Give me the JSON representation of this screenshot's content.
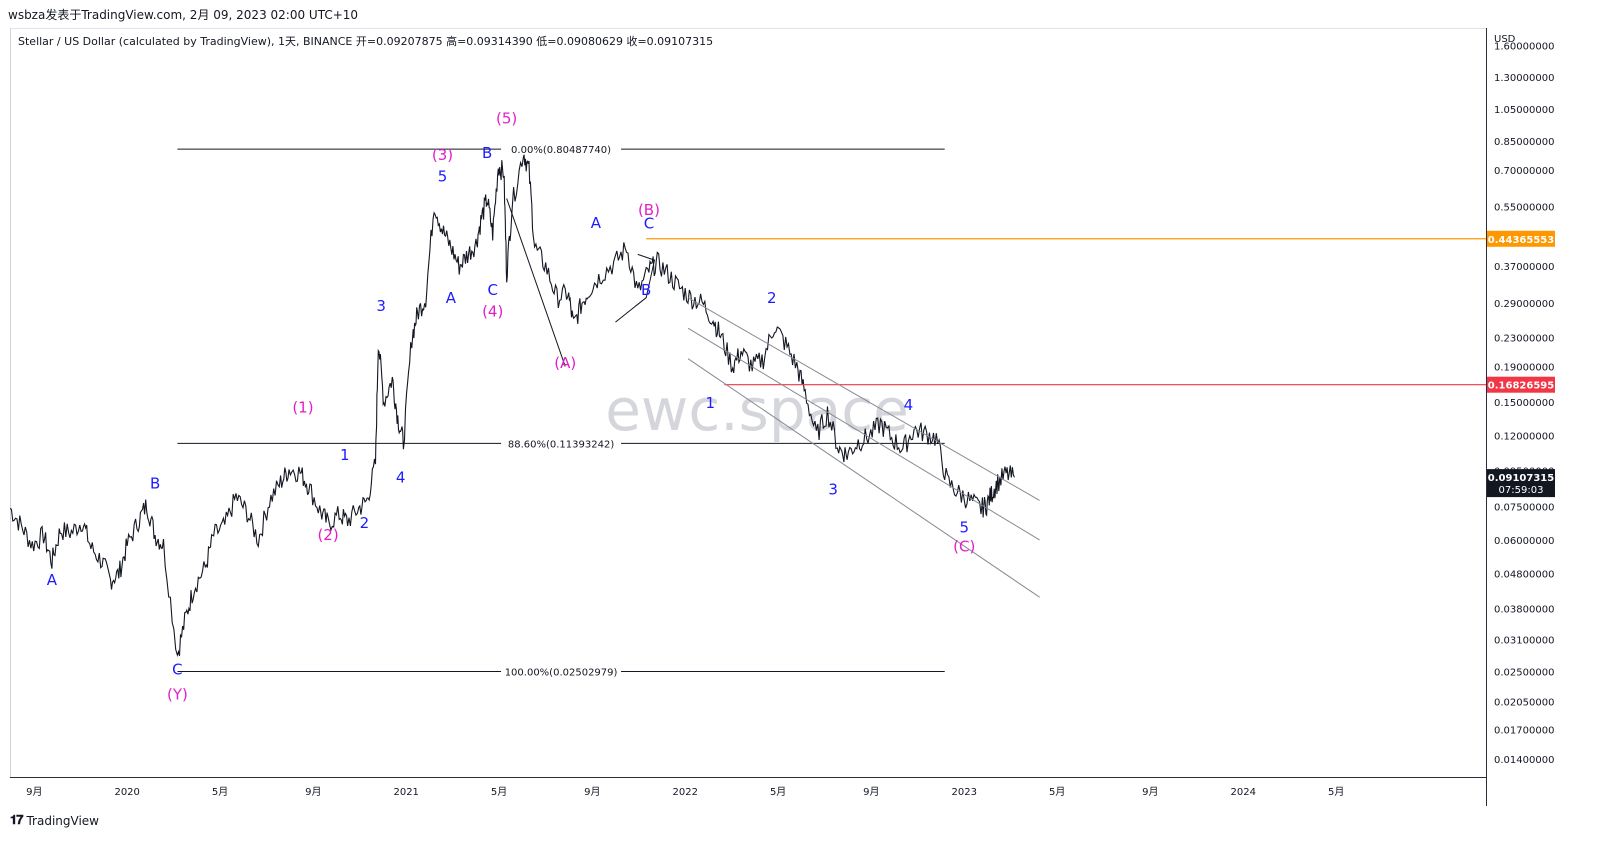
{
  "header": {
    "publish_line": "wsbza发表于TradingView.com,  2月 09, 2023 02:00 UTC+10",
    "symbol_line": "Stellar / US Dollar (calculated by TradingView), 1天, BINANCE  开=0.09207875  高=0.09314390  低=0.09080629  收=0.09107315"
  },
  "footer": {
    "brand": "TradingView",
    "logo_icon": "tradingview-logo-icon"
  },
  "watermark": "ewc.space",
  "chart_data": {
    "type": "line",
    "title": "",
    "yscale": "log",
    "ylim": [
      0.0125,
      1.8
    ],
    "price_axis_label": "USD",
    "price_ticks": [
      "1.60000000",
      "1.30000000",
      "1.05000000",
      "0.85000000",
      "0.70000000",
      "0.55000000",
      "0.37000000",
      "0.29000000",
      "0.23000000",
      "0.19000000",
      "0.15000000",
      "0.12000000",
      "0.09500000",
      "0.07500000",
      "0.06000000",
      "0.04800000",
      "0.03800000",
      "0.03100000",
      "0.02500000",
      "0.02050000",
      "0.01700000",
      "0.01400000"
    ],
    "price_tick_values": [
      1.6,
      1.3,
      1.05,
      0.85,
      0.7,
      0.55,
      0.37,
      0.29,
      0.23,
      0.19,
      0.15,
      0.12,
      0.095,
      0.075,
      0.06,
      0.048,
      0.038,
      0.031,
      0.025,
      0.0205,
      0.017,
      0.014
    ],
    "time_ticks": [
      {
        "label": "9月",
        "t": 2019.667
      },
      {
        "label": "2020",
        "t": 2020.0
      },
      {
        "label": "5月",
        "t": 2020.333
      },
      {
        "label": "9月",
        "t": 2020.667
      },
      {
        "label": "2021",
        "t": 2021.0
      },
      {
        "label": "5月",
        "t": 2021.333
      },
      {
        "label": "9月",
        "t": 2021.667
      },
      {
        "label": "2022",
        "t": 2022.0
      },
      {
        "label": "5月",
        "t": 2022.333
      },
      {
        "label": "9月",
        "t": 2022.667
      },
      {
        "label": "2023",
        "t": 2023.0
      },
      {
        "label": "5月",
        "t": 2023.333
      },
      {
        "label": "9月",
        "t": 2023.667
      },
      {
        "label": "2024",
        "t": 2024.0
      },
      {
        "label": "5月",
        "t": 2024.333
      }
    ],
    "xlim": [
      2019.58,
      2024.87
    ],
    "series": [
      {
        "color": "#131722",
        "points": [
          [
            2019.58,
            0.074
          ],
          [
            2019.62,
            0.066
          ],
          [
            2019.66,
            0.058
          ],
          [
            2019.7,
            0.062
          ],
          [
            2019.73,
            0.052
          ],
          [
            2019.76,
            0.064
          ],
          [
            2019.8,
            0.063
          ],
          [
            2019.84,
            0.068
          ],
          [
            2019.87,
            0.057
          ],
          [
            2019.91,
            0.052
          ],
          [
            2019.94,
            0.046
          ],
          [
            2019.97,
            0.048
          ],
          [
            2020.0,
            0.058
          ],
          [
            2020.04,
            0.068
          ],
          [
            2020.07,
            0.076
          ],
          [
            2020.1,
            0.062
          ],
          [
            2020.13,
            0.058
          ],
          [
            2020.18,
            0.028
          ],
          [
            2020.21,
            0.036
          ],
          [
            2020.24,
            0.044
          ],
          [
            2020.28,
            0.05
          ],
          [
            2020.31,
            0.062
          ],
          [
            2020.35,
            0.066
          ],
          [
            2020.39,
            0.08
          ],
          [
            2020.43,
            0.072
          ],
          [
            2020.47,
            0.06
          ],
          [
            2020.51,
            0.078
          ],
          [
            2020.55,
            0.088
          ],
          [
            2020.58,
            0.096
          ],
          [
            2020.62,
            0.094
          ],
          [
            2020.65,
            0.086
          ],
          [
            2020.69,
            0.073
          ],
          [
            2020.72,
            0.067
          ],
          [
            2020.76,
            0.071
          ],
          [
            2020.79,
            0.068
          ],
          [
            2020.83,
            0.074
          ],
          [
            2020.86,
            0.078
          ],
          [
            2020.89,
            0.1
          ],
          [
            2020.9,
            0.225
          ],
          [
            2020.92,
            0.15
          ],
          [
            2020.95,
            0.175
          ],
          [
            2020.97,
            0.135
          ],
          [
            2020.99,
            0.115
          ],
          [
            2021.02,
            0.23
          ],
          [
            2021.04,
            0.27
          ],
          [
            2021.07,
            0.3
          ],
          [
            2021.1,
            0.56
          ],
          [
            2021.13,
            0.47
          ],
          [
            2021.16,
            0.42
          ],
          [
            2021.19,
            0.37
          ],
          [
            2021.22,
            0.4
          ],
          [
            2021.25,
            0.43
          ],
          [
            2021.27,
            0.51
          ],
          [
            2021.29,
            0.58
          ],
          [
            2021.31,
            0.46
          ],
          [
            2021.33,
            0.72
          ],
          [
            2021.35,
            0.69
          ],
          [
            2021.36,
            0.35
          ],
          [
            2021.38,
            0.56
          ],
          [
            2021.42,
            0.79
          ],
          [
            2021.44,
            0.7
          ],
          [
            2021.46,
            0.42
          ],
          [
            2021.5,
            0.37
          ],
          [
            2021.54,
            0.3
          ],
          [
            2021.58,
            0.31
          ],
          [
            2021.6,
            0.25
          ],
          [
            2021.63,
            0.29
          ],
          [
            2021.66,
            0.32
          ],
          [
            2021.7,
            0.35
          ],
          [
            2021.75,
            0.38
          ],
          [
            2021.79,
            0.42
          ],
          [
            2021.83,
            0.31
          ],
          [
            2021.87,
            0.36
          ],
          [
            2021.9,
            0.38
          ],
          [
            2021.94,
            0.35
          ],
          [
            2021.98,
            0.32
          ],
          [
            2022.02,
            0.3
          ],
          [
            2022.06,
            0.29
          ],
          [
            2022.1,
            0.26
          ],
          [
            2022.13,
            0.23
          ],
          [
            2022.17,
            0.19
          ],
          [
            2022.2,
            0.21
          ],
          [
            2022.24,
            0.19
          ],
          [
            2022.28,
            0.2
          ],
          [
            2022.32,
            0.25
          ],
          [
            2022.36,
            0.22
          ],
          [
            2022.4,
            0.19
          ],
          [
            2022.43,
            0.16
          ],
          [
            2022.47,
            0.12
          ],
          [
            2022.51,
            0.14
          ],
          [
            2022.55,
            0.11
          ],
          [
            2022.58,
            0.106
          ],
          [
            2022.62,
            0.115
          ],
          [
            2022.66,
            0.12
          ],
          [
            2022.7,
            0.13
          ],
          [
            2022.74,
            0.118
          ],
          [
            2022.78,
            0.11
          ],
          [
            2022.82,
            0.125
          ],
          [
            2022.86,
            0.122
          ],
          [
            2022.9,
            0.118
          ],
          [
            2022.94,
            0.088
          ],
          [
            2022.98,
            0.082
          ],
          [
            2023.02,
            0.078
          ],
          [
            2023.06,
            0.074
          ],
          [
            2023.08,
            0.076
          ],
          [
            2023.1,
            0.082
          ],
          [
            2023.12,
            0.088
          ],
          [
            2023.15,
            0.093
          ],
          [
            2023.18,
            0.091
          ]
        ]
      }
    ],
    "horizontal_levels": [
      {
        "label": "0.00%(0.80487740)",
        "price": 0.8049,
        "from": 2020.18,
        "to": 2022.93,
        "color": "#131722"
      },
      {
        "label": "88.60%(0.11393242)",
        "price": 0.1139,
        "from": 2020.18,
        "to": 2022.93,
        "color": "#131722"
      },
      {
        "label": "100.00%(0.02502979)",
        "price": 0.02503,
        "from": 2020.18,
        "to": 2022.93,
        "color": "#131722"
      }
    ],
    "key_levels": [
      {
        "value_label": "0.44365553",
        "price": 0.44366,
        "from": 2021.86,
        "color": "#ff9800"
      },
      {
        "value_label": "0.16826595",
        "price": 0.16827,
        "from": 2022.14,
        "color": "#f23645"
      }
    ],
    "last_price": {
      "value_label": "0.09107315",
      "countdown": "07:59:03",
      "price": 0.09107,
      "color": "#131722"
    },
    "channel_lines": [
      {
        "from": [
          2022.01,
          0.3
        ],
        "to": [
          2023.27,
          0.078
        ]
      },
      {
        "from": [
          2022.01,
          0.245
        ],
        "to": [
          2023.27,
          0.06
        ]
      },
      {
        "from": [
          2022.01,
          0.2
        ],
        "to": [
          2023.27,
          0.041
        ]
      }
    ],
    "annotations": [
      {
        "text": "A",
        "t": 2019.73,
        "p": 0.0445,
        "color": "#1c1cff"
      },
      {
        "text": "B",
        "t": 2020.1,
        "p": 0.0845,
        "color": "#1c1cff"
      },
      {
        "text": "C",
        "t": 2020.18,
        "p": 0.0245,
        "color": "#1c1cff"
      },
      {
        "text": "(Y)",
        "t": 2020.18,
        "p": 0.0208,
        "color": "#e21fc7"
      },
      {
        "text": "(1)",
        "t": 2020.63,
        "p": 0.14,
        "color": "#e21fc7"
      },
      {
        "text": "1",
        "t": 2020.78,
        "p": 0.102,
        "color": "#1c1cff"
      },
      {
        "text": "(2)",
        "t": 2020.72,
        "p": 0.06,
        "color": "#e21fc7"
      },
      {
        "text": "2",
        "t": 2020.85,
        "p": 0.065,
        "color": "#1c1cff"
      },
      {
        "text": "3",
        "t": 2020.91,
        "p": 0.275,
        "color": "#1c1cff"
      },
      {
        "text": "4",
        "t": 2020.98,
        "p": 0.088,
        "color": "#1c1cff"
      },
      {
        "text": "(3)",
        "t": 2021.13,
        "p": 0.75,
        "color": "#e21fc7"
      },
      {
        "text": "5",
        "t": 2021.13,
        "p": 0.65,
        "color": "#1c1cff"
      },
      {
        "text": "A",
        "t": 2021.16,
        "p": 0.29,
        "color": "#1c1cff"
      },
      {
        "text": "B",
        "t": 2021.29,
        "p": 0.76,
        "color": "#1c1cff"
      },
      {
        "text": "C",
        "t": 2021.31,
        "p": 0.305,
        "color": "#1c1cff"
      },
      {
        "text": "(4)",
        "t": 2021.31,
        "p": 0.265,
        "color": "#e21fc7"
      },
      {
        "text": "(5)",
        "t": 2021.36,
        "p": 0.955,
        "color": "#e21fc7"
      },
      {
        "text": "(A)",
        "t": 2021.57,
        "p": 0.188,
        "color": "#e21fc7"
      },
      {
        "text": "A",
        "t": 2021.68,
        "p": 0.477,
        "color": "#1c1cff"
      },
      {
        "text": "(B)",
        "t": 2021.87,
        "p": 0.52,
        "color": "#e21fc7"
      },
      {
        "text": "C",
        "t": 2021.87,
        "p": 0.475,
        "color": "#1c1cff"
      },
      {
        "text": "B",
        "t": 2021.86,
        "p": 0.305,
        "color": "#1c1cff"
      },
      {
        "text": "1",
        "t": 2022.09,
        "p": 0.144,
        "color": "#1c1cff"
      },
      {
        "text": "2",
        "t": 2022.31,
        "p": 0.29,
        "color": "#1c1cff"
      },
      {
        "text": "3",
        "t": 2022.53,
        "p": 0.081,
        "color": "#1c1cff"
      },
      {
        "text": "4",
        "t": 2022.8,
        "p": 0.142,
        "color": "#1c1cff"
      },
      {
        "text": "5",
        "t": 2023.0,
        "p": 0.063,
        "color": "#1c1cff"
      },
      {
        "text": "(C)",
        "t": 2023.0,
        "p": 0.0555,
        "color": "#e21fc7"
      }
    ]
  }
}
